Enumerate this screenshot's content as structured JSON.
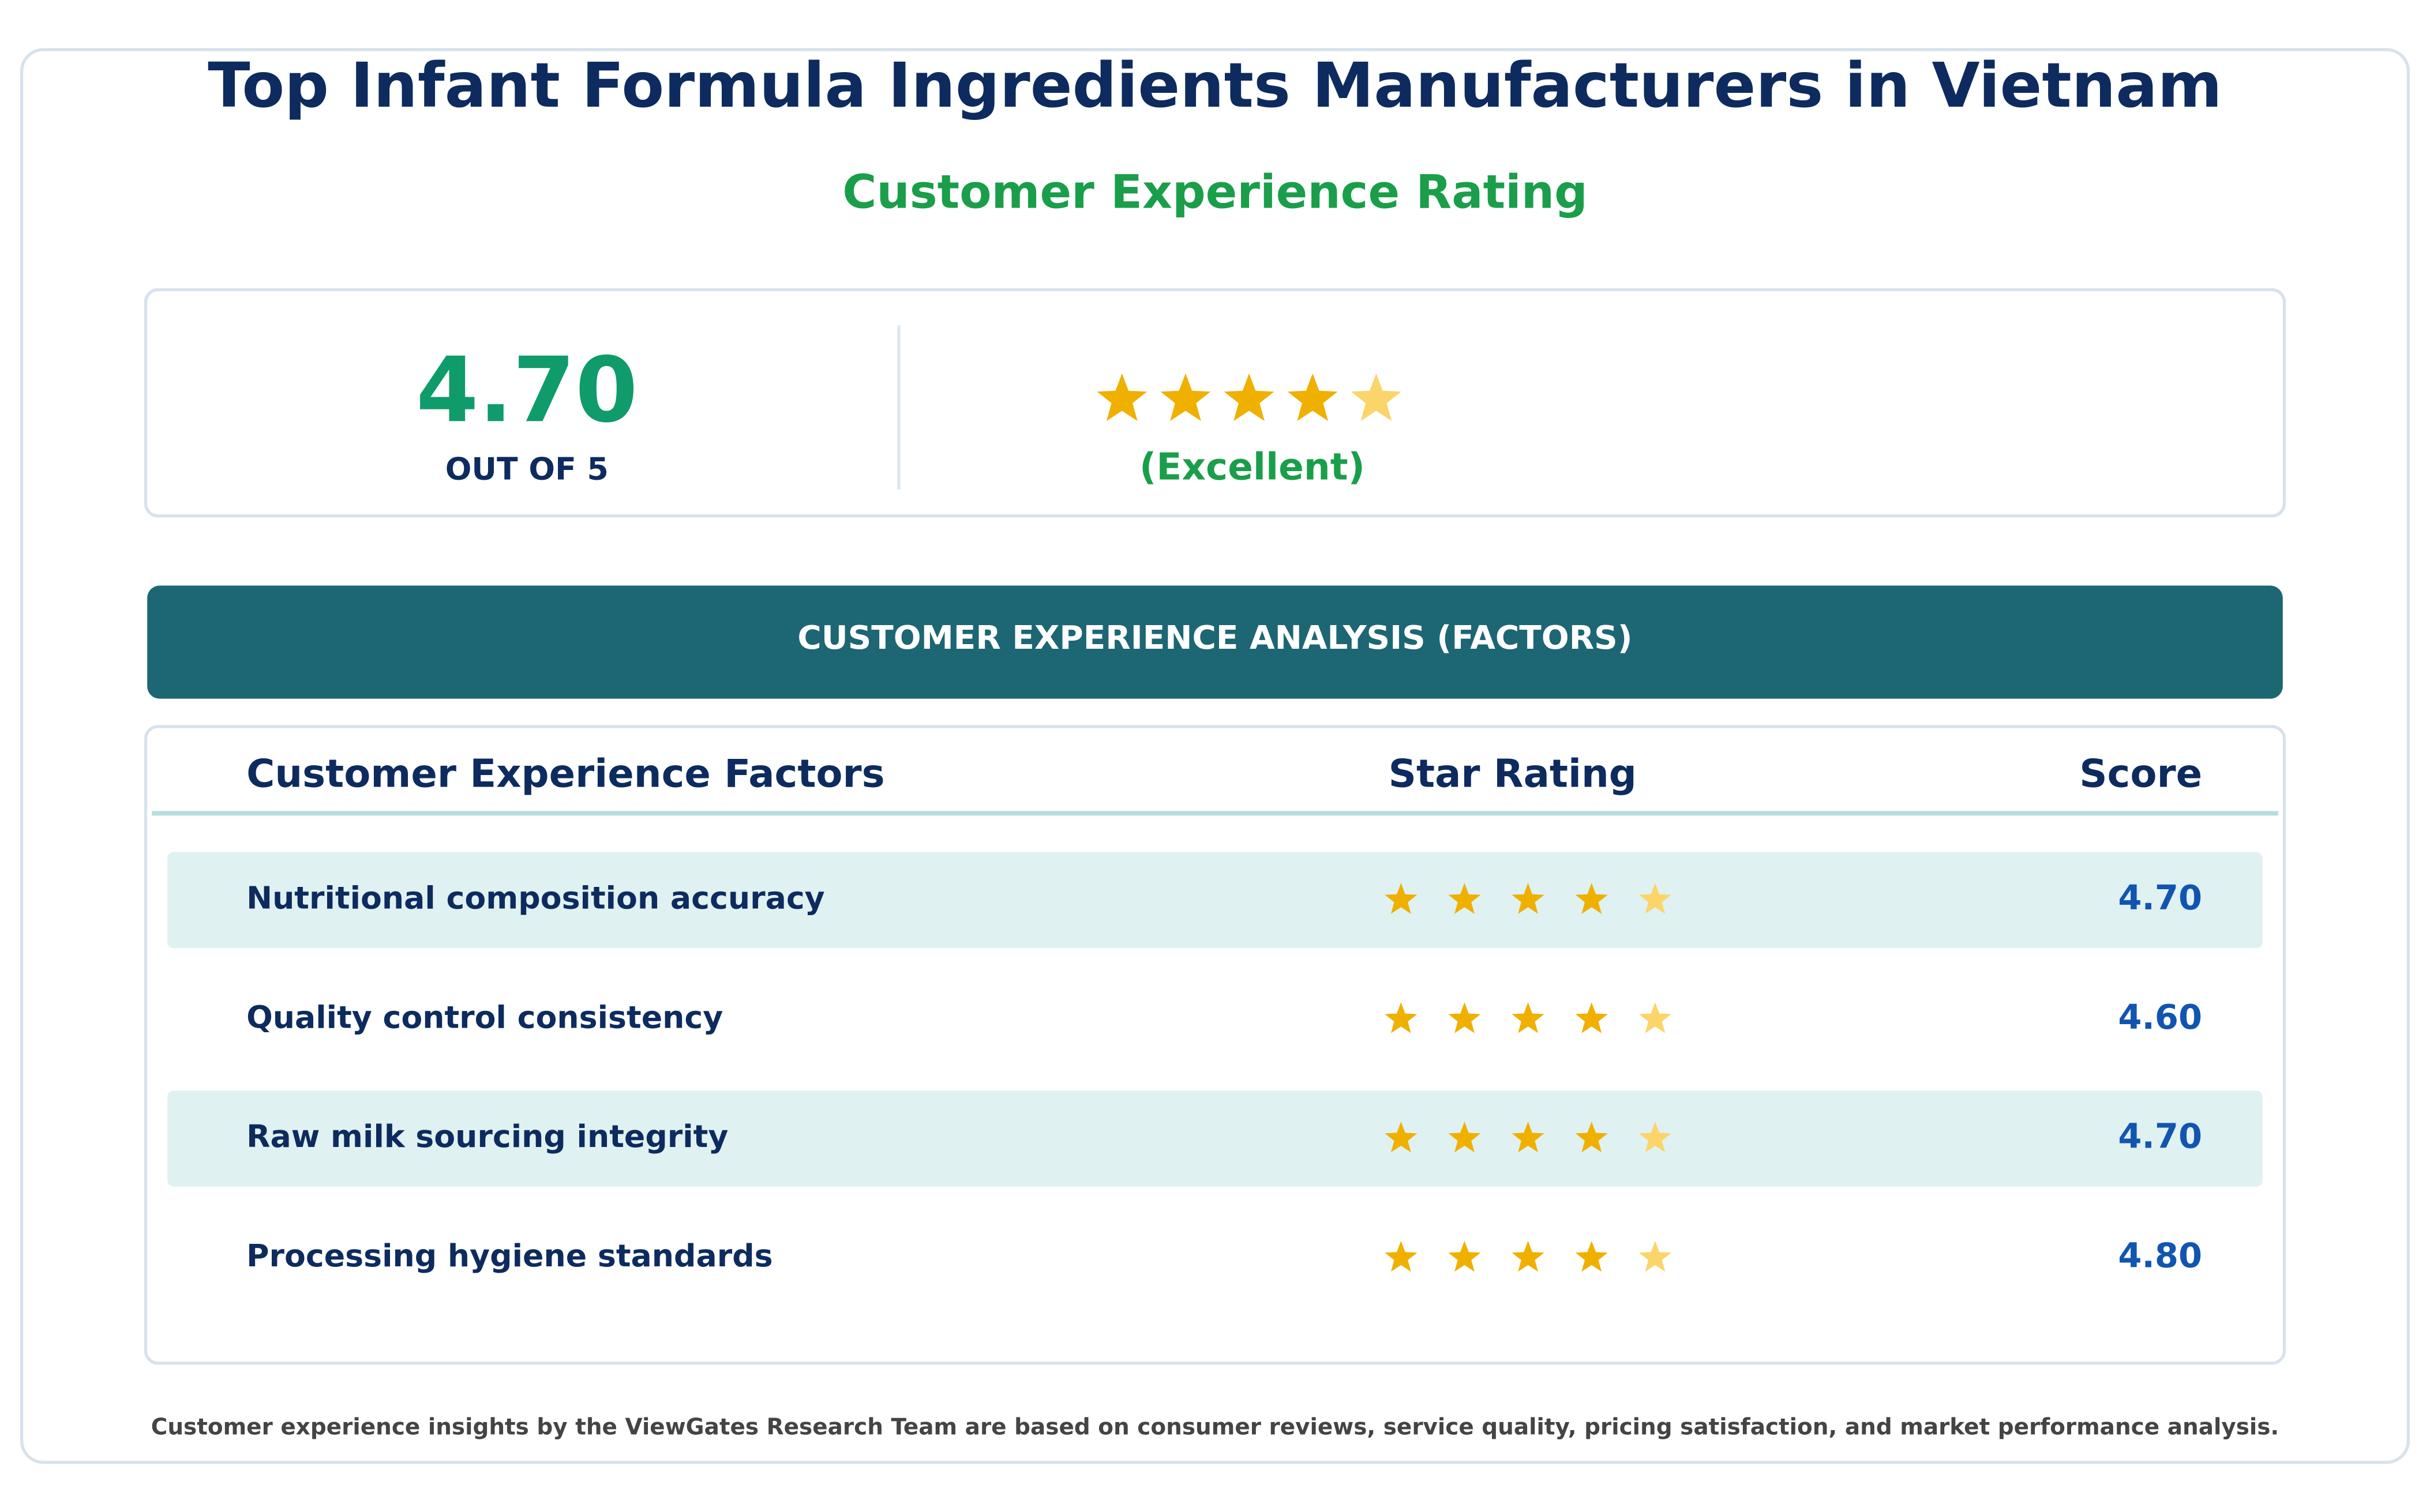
{
  "header": {
    "title": "Top Infant Formula Ingredients Manufacturers in Vietnam",
    "subtitle": "Customer Experience Rating"
  },
  "overall": {
    "score": "4.70",
    "scale_label": "OUT OF 5",
    "verdict": "(Excellent)"
  },
  "analysis": {
    "banner": "CUSTOMER EXPERIENCE ANALYSIS (FACTORS)",
    "columns": [
      "Customer Experience Factors",
      "Star Rating",
      "Score"
    ],
    "rows": [
      [
        "Nutritional composition accuracy",
        "4.70"
      ],
      [
        "Quality control consistency",
        "4.60"
      ],
      [
        "Raw milk sourcing integrity",
        "4.70"
      ],
      [
        "Processing hygiene standards",
        "4.80"
      ]
    ]
  },
  "footer": "Customer experience insights by the ViewGates Research Team are based on consumer reviews, service quality, pricing satisfaction, and market performance analysis."
}
